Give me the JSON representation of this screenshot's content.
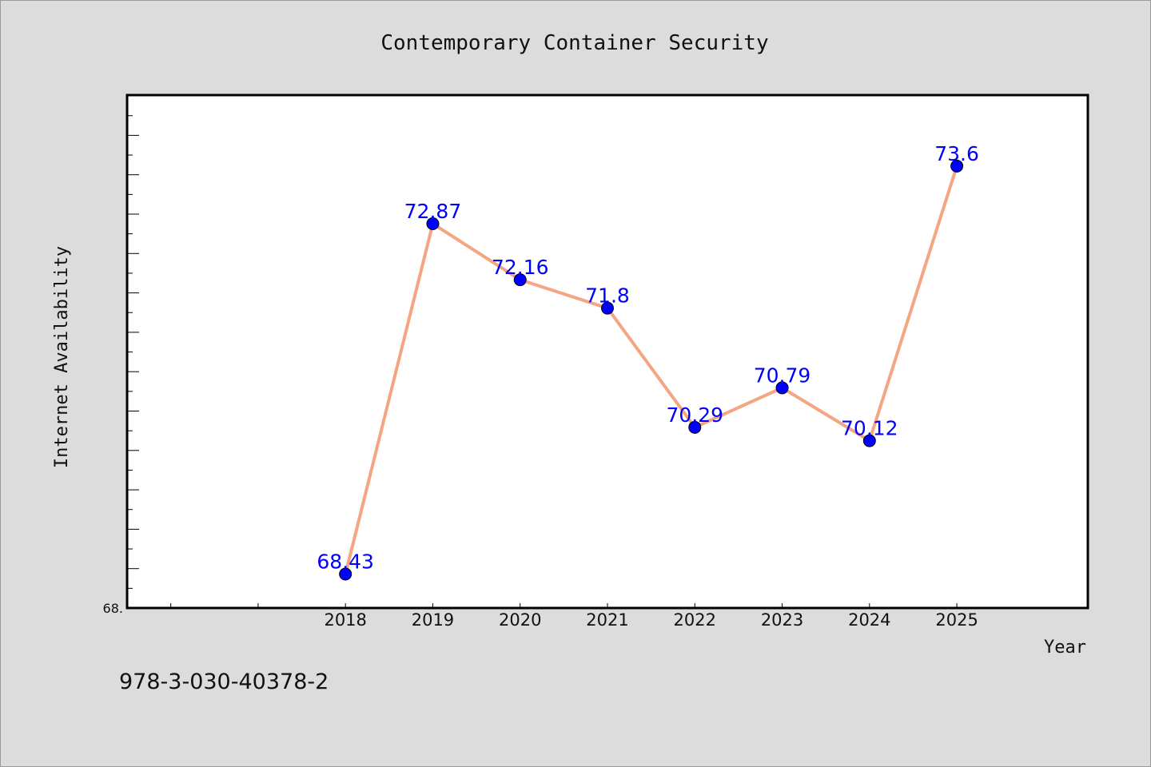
{
  "chart_data": {
    "type": "line",
    "title": "Contemporary Container Security",
    "xlabel": "Year",
    "ylabel": "Internet Availability",
    "categories": [
      "2018",
      "2019",
      "2020",
      "2021",
      "2022",
      "2023",
      "2024",
      "2025"
    ],
    "x_ticks_unlabeled": [
      "2016",
      "2017"
    ],
    "values": [
      68.43,
      72.87,
      72.16,
      71.8,
      70.29,
      70.79,
      70.12,
      73.6
    ],
    "data_labels": [
      "68.43",
      "72.87",
      "72.16",
      "71.8",
      "70.29",
      "70.79",
      "70.12",
      "73.6"
    ],
    "y_tick_labels": [
      "68."
    ],
    "ylim": [
      68.0,
      74.5
    ],
    "xlim": [
      2015.5,
      2026.5
    ],
    "grid": false,
    "line_color": "#f4a582",
    "marker_color": "#0000ff",
    "label_color": "#0000ff"
  },
  "footer": {
    "isbn": "978-3-030-40378-2"
  }
}
